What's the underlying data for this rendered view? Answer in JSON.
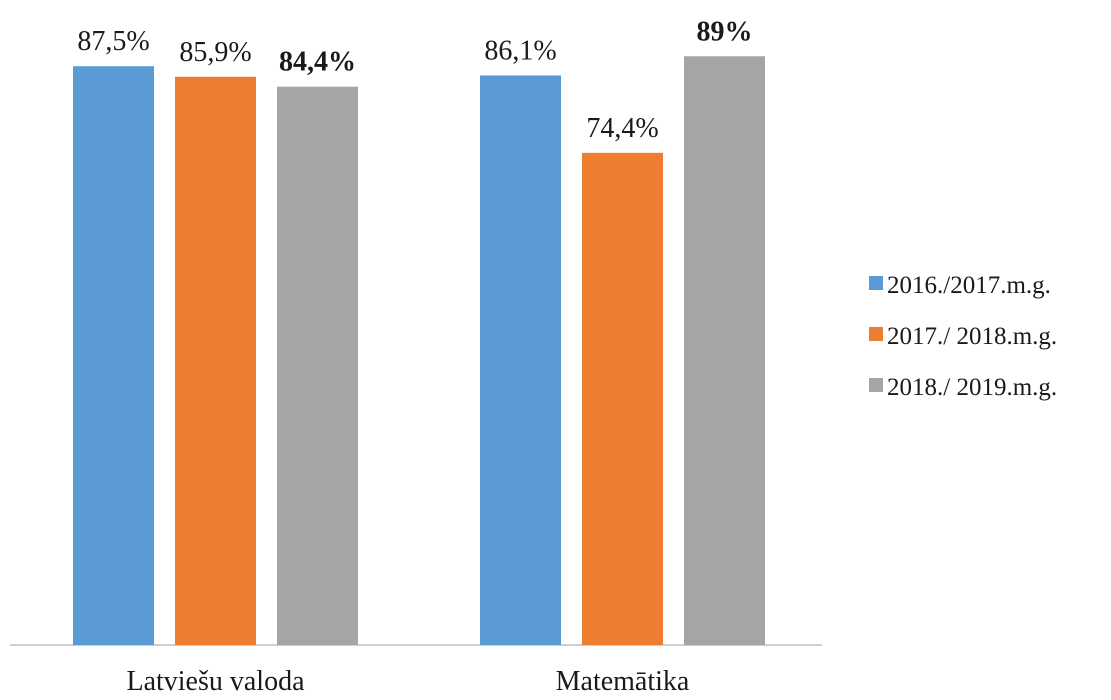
{
  "chart_data": {
    "type": "bar",
    "categories": [
      "Latviešu valoda",
      "Matemātika"
    ],
    "series": [
      {
        "name": "2016./2017.m.g.",
        "color": "#5b9bd5",
        "values": [
          87.5,
          86.1
        ],
        "labels": [
          "87,5%",
          "86,1%"
        ],
        "bold": [
          false,
          false
        ]
      },
      {
        "name": "2017./ 2018.m.g.",
        "color": "#ed7d31",
        "values": [
          85.9,
          74.4
        ],
        "labels": [
          "85,9%",
          "74,4%"
        ],
        "bold": [
          false,
          false
        ]
      },
      {
        "name": "2018./ 2019.m.g.",
        "color": "#a5a5a5",
        "values": [
          84.4,
          89.0
        ],
        "labels": [
          "84,4%",
          "89%"
        ],
        "bold": [
          true,
          true
        ]
      }
    ],
    "ylim": [
      0,
      100
    ],
    "legend_position": "right",
    "grid": false
  }
}
